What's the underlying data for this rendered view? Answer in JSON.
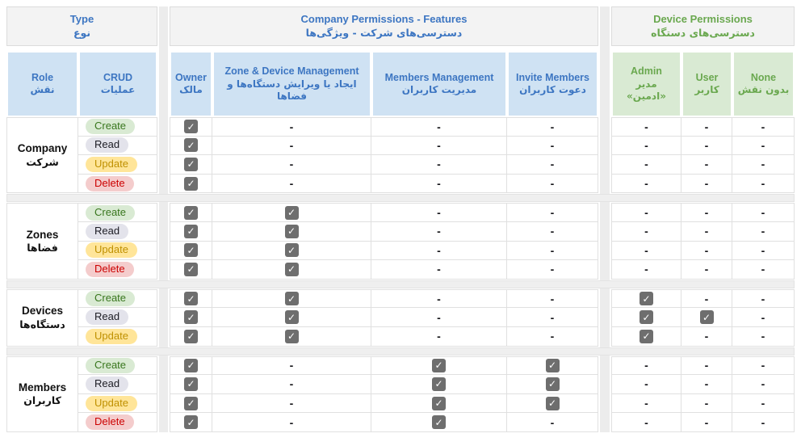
{
  "header": {
    "type_col": {
      "en": "Type",
      "fa": "نوع"
    },
    "groups": {
      "company": {
        "en": "Company Permissions - Features",
        "fa": "دسترسی‌های شرکت - ویژگی‌ها"
      },
      "device": {
        "en": "Device Permissions",
        "fa": "دسترسی‌های دستگاه"
      }
    },
    "columns": [
      {
        "key": "role",
        "en": "Role",
        "fa": "نقش",
        "theme": "blue"
      },
      {
        "key": "crud",
        "en": "CRUD",
        "fa": "عملیات",
        "theme": "blue"
      },
      {
        "key": "owner",
        "en": "Owner",
        "fa": "مالک",
        "theme": "blue"
      },
      {
        "key": "zone_device_management",
        "en": "Zone & Device Management",
        "fa": "ایجاد یا ویرایش دستگاه‌ها و فضاها",
        "theme": "blue"
      },
      {
        "key": "members_management",
        "en": "Members Management",
        "fa": "مدیریت کاربران",
        "theme": "blue"
      },
      {
        "key": "invite_members",
        "en": "Invite Members",
        "fa": "دعوت کاربران",
        "theme": "blue"
      },
      {
        "key": "admin",
        "en": "Admin",
        "fa": "مدیر «ادمین»",
        "theme": "green"
      },
      {
        "key": "user",
        "en": "User",
        "fa": "کاربر",
        "theme": "green"
      },
      {
        "key": "none",
        "en": "None",
        "fa": "بدون نقش",
        "theme": "green"
      }
    ]
  },
  "badges": {
    "Create": {
      "bg": "#d9ead3",
      "text": "#38761d"
    },
    "Read": {
      "bg": "#e3e3eb",
      "text": "#1c1c24"
    },
    "Update": {
      "bg": "#ffe599",
      "text": "#bf9000"
    },
    "Delete": {
      "bg": "#f4cccc",
      "text": "#cc0000"
    }
  },
  "legend": {
    "check": "✓",
    "empty": "-"
  },
  "sections": [
    {
      "key": "company",
      "label": {
        "en": "Company",
        "fa": "شرکت"
      },
      "rows": [
        {
          "crud": "Create",
          "cells": [
            "check",
            "dash",
            "dash",
            "dash",
            "dash",
            "dash",
            "dash"
          ]
        },
        {
          "crud": "Read",
          "cells": [
            "check",
            "dash",
            "dash",
            "dash",
            "dash",
            "dash",
            "dash"
          ]
        },
        {
          "crud": "Update",
          "cells": [
            "check",
            "dash",
            "dash",
            "dash",
            "dash",
            "dash",
            "dash"
          ]
        },
        {
          "crud": "Delete",
          "cells": [
            "check",
            "dash",
            "dash",
            "dash",
            "dash",
            "dash",
            "dash"
          ]
        }
      ]
    },
    {
      "key": "zones",
      "label": {
        "en": "Zones",
        "fa": "فضاها"
      },
      "rows": [
        {
          "crud": "Create",
          "cells": [
            "check",
            "check",
            "dash",
            "dash",
            "dash",
            "dash",
            "dash"
          ]
        },
        {
          "crud": "Read",
          "cells": [
            "check",
            "check",
            "dash",
            "dash",
            "dash",
            "dash",
            "dash"
          ]
        },
        {
          "crud": "Update",
          "cells": [
            "check",
            "check",
            "dash",
            "dash",
            "dash",
            "dash",
            "dash"
          ]
        },
        {
          "crud": "Delete",
          "cells": [
            "check",
            "check",
            "dash",
            "dash",
            "dash",
            "dash",
            "dash"
          ]
        }
      ]
    },
    {
      "key": "devices",
      "label": {
        "en": "Devices",
        "fa": "دستگاه‌ها"
      },
      "rows": [
        {
          "crud": "Create",
          "cells": [
            "check",
            "check",
            "dash",
            "dash",
            "check",
            "dash",
            "dash"
          ]
        },
        {
          "crud": "Read",
          "cells": [
            "check",
            "check",
            "dash",
            "dash",
            "check",
            "check",
            "dash"
          ]
        },
        {
          "crud": "Update",
          "cells": [
            "check",
            "check",
            "dash",
            "dash",
            "check",
            "dash",
            "dash"
          ]
        }
      ]
    },
    {
      "key": "members",
      "label": {
        "en": "Members",
        "fa": "کاربران"
      },
      "rows": [
        {
          "crud": "Create",
          "cells": [
            "check",
            "dash",
            "check",
            "check",
            "dash",
            "dash",
            "dash"
          ]
        },
        {
          "crud": "Read",
          "cells": [
            "check",
            "dash",
            "check",
            "check",
            "dash",
            "dash",
            "dash"
          ]
        },
        {
          "crud": "Update",
          "cells": [
            "check",
            "dash",
            "check",
            "check",
            "dash",
            "dash",
            "dash"
          ]
        },
        {
          "crud": "Delete",
          "cells": [
            "check",
            "dash",
            "check",
            "dash",
            "dash",
            "dash",
            "dash"
          ]
        }
      ]
    }
  ],
  "colors": {
    "header_blue_text": "#3d76c2",
    "header_green_text": "#6aa84f",
    "header_blue_bg": "#cfe2f3",
    "header_green_bg": "#d9ead3",
    "group_header_bg": "#f3f3f3",
    "separator_gray": "#ececec",
    "body_border": "#e0e0e0",
    "checkbox_gray": "#6e6e6e"
  }
}
